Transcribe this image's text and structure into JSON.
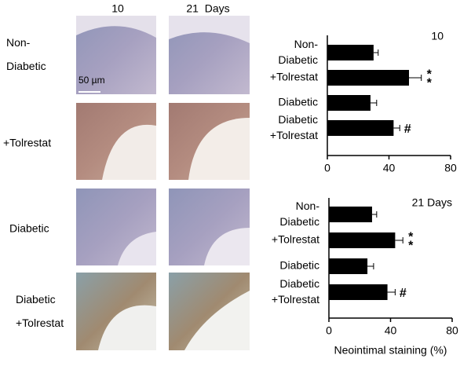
{
  "figure": {
    "column_labels": [
      "10",
      "21  Days"
    ],
    "row_labels": [
      "Non-\nDiabetic",
      "+Tolrestat",
      "Diabetic",
      "Diabetic\n+Tolrestat"
    ],
    "scale_bar": "50 µm"
  },
  "chart_data": [
    {
      "type": "barh",
      "title": "10",
      "categories": [
        "Non-\nDiabetic",
        "+Tolrestat",
        "Diabetic",
        "Diabetic\n+Tolrestat"
      ],
      "values": [
        30,
        53,
        28,
        43
      ],
      "errors": [
        3,
        8,
        4,
        4
      ],
      "annotations": [
        null,
        "*\n*",
        null,
        "#"
      ],
      "color": "#000000",
      "xlim": [
        0,
        80
      ],
      "xticks": [
        0,
        40,
        80
      ]
    },
    {
      "type": "barh",
      "title": "21 Days",
      "categories": [
        "Non-\nDiabetic",
        "+Tolrestat",
        "Diabetic",
        "Diabetic\n+Tolrestat"
      ],
      "values": [
        28,
        43,
        25,
        38
      ],
      "errors": [
        3,
        5,
        4,
        5
      ],
      "annotations": [
        null,
        "*\n*",
        null,
        "#"
      ],
      "color": "#000000",
      "xlim": [
        0,
        80
      ],
      "xticks": [
        0,
        40,
        80
      ],
      "xlabel": "Neointimal staining (%)"
    }
  ]
}
